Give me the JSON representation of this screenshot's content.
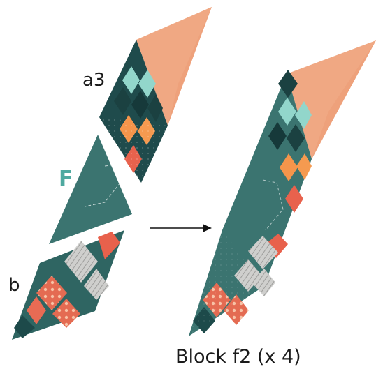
{
  "labels": {
    "a3": "a3",
    "F": "F",
    "b": "b",
    "caption": "Block f2 (x 4)"
  },
  "colors": {
    "peach": "#f0a27a",
    "dark_teal": "#1d4a4a",
    "mid_teal": "#3c7470",
    "aqua": "#8fd3c8",
    "orange": "#f5954b",
    "coral": "#e8614c",
    "gray_print": "#c8c8c6",
    "red_print": "#e06a55",
    "arrow": "#111111"
  }
}
